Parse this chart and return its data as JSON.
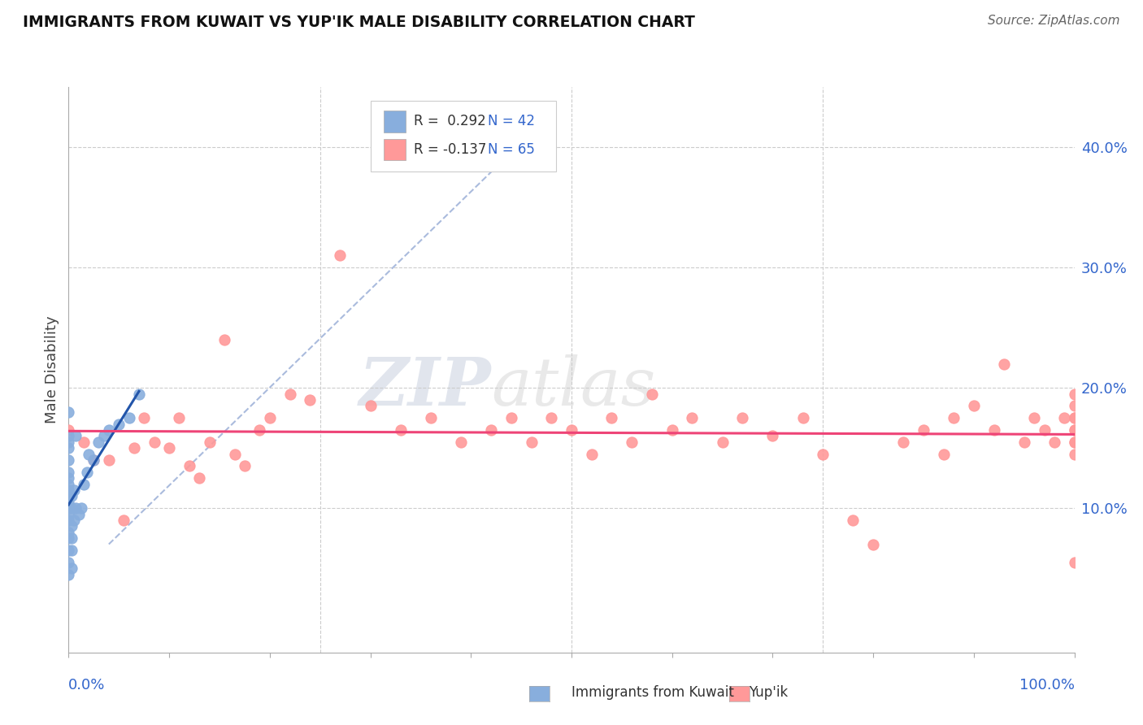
{
  "title": "IMMIGRANTS FROM KUWAIT VS YUP'IK MALE DISABILITY CORRELATION CHART",
  "source": "Source: ZipAtlas.com",
  "ylabel": "Male Disability",
  "watermark": "ZIPatlas",
  "ytick_labels": [
    "10.0%",
    "20.0%",
    "30.0%",
    "40.0%"
  ],
  "ytick_values": [
    0.1,
    0.2,
    0.3,
    0.4
  ],
  "xlim": [
    0.0,
    1.0
  ],
  "ylim": [
    -0.02,
    0.45
  ],
  "blue_scatter_color": "#88AEDD",
  "pink_scatter_color": "#FF9999",
  "blue_line_color": "#2255AA",
  "pink_line_color": "#EE4477",
  "dashed_line_color": "#AABBDD",
  "grid_color": "#CCCCCC",
  "title_color": "#111111",
  "axis_label_color": "#3366CC",
  "legend_text_color": "#333333",
  "kuwait_x": [
    0.0,
    0.0,
    0.0,
    0.0,
    0.0,
    0.0,
    0.0,
    0.0,
    0.0,
    0.0,
    0.0,
    0.0,
    0.0,
    0.0,
    0.0,
    0.0,
    0.0,
    0.0,
    0.0,
    0.0,
    0.003,
    0.003,
    0.003,
    0.003,
    0.003,
    0.003,
    0.005,
    0.005,
    0.007,
    0.007,
    0.01,
    0.013,
    0.015,
    0.018,
    0.02,
    0.025,
    0.03,
    0.035,
    0.04,
    0.05,
    0.06,
    0.07
  ],
  "kuwait_y": [
    0.045,
    0.055,
    0.065,
    0.075,
    0.08,
    0.09,
    0.095,
    0.1,
    0.1,
    0.105,
    0.11,
    0.115,
    0.12,
    0.125,
    0.13,
    0.14,
    0.15,
    0.155,
    0.16,
    0.18,
    0.05,
    0.065,
    0.075,
    0.085,
    0.1,
    0.11,
    0.09,
    0.115,
    0.1,
    0.16,
    0.095,
    0.1,
    0.12,
    0.13,
    0.145,
    0.14,
    0.155,
    0.16,
    0.165,
    0.17,
    0.175,
    0.195
  ],
  "yupik_x": [
    0.0,
    0.015,
    0.025,
    0.04,
    0.055,
    0.065,
    0.075,
    0.085,
    0.1,
    0.11,
    0.12,
    0.13,
    0.14,
    0.155,
    0.165,
    0.175,
    0.19,
    0.2,
    0.22,
    0.24,
    0.27,
    0.3,
    0.33,
    0.36,
    0.39,
    0.42,
    0.44,
    0.46,
    0.48,
    0.5,
    0.52,
    0.54,
    0.56,
    0.58,
    0.6,
    0.62,
    0.65,
    0.67,
    0.7,
    0.73,
    0.75,
    0.78,
    0.8,
    0.83,
    0.85,
    0.87,
    0.88,
    0.9,
    0.92,
    0.93,
    0.95,
    0.96,
    0.97,
    0.98,
    0.99,
    1.0,
    1.0,
    1.0,
    1.0,
    1.0,
    1.0,
    1.0,
    1.0,
    1.0,
    1.0
  ],
  "yupik_y": [
    0.165,
    0.155,
    0.14,
    0.14,
    0.09,
    0.15,
    0.175,
    0.155,
    0.15,
    0.175,
    0.135,
    0.125,
    0.155,
    0.24,
    0.145,
    0.135,
    0.165,
    0.175,
    0.195,
    0.19,
    0.31,
    0.185,
    0.165,
    0.175,
    0.155,
    0.165,
    0.175,
    0.155,
    0.175,
    0.165,
    0.145,
    0.175,
    0.155,
    0.195,
    0.165,
    0.175,
    0.155,
    0.175,
    0.16,
    0.175,
    0.145,
    0.09,
    0.07,
    0.155,
    0.165,
    0.145,
    0.175,
    0.185,
    0.165,
    0.22,
    0.155,
    0.175,
    0.165,
    0.155,
    0.175,
    0.165,
    0.175,
    0.185,
    0.195,
    0.155,
    0.165,
    0.145,
    0.175,
    0.055,
    0.155
  ]
}
